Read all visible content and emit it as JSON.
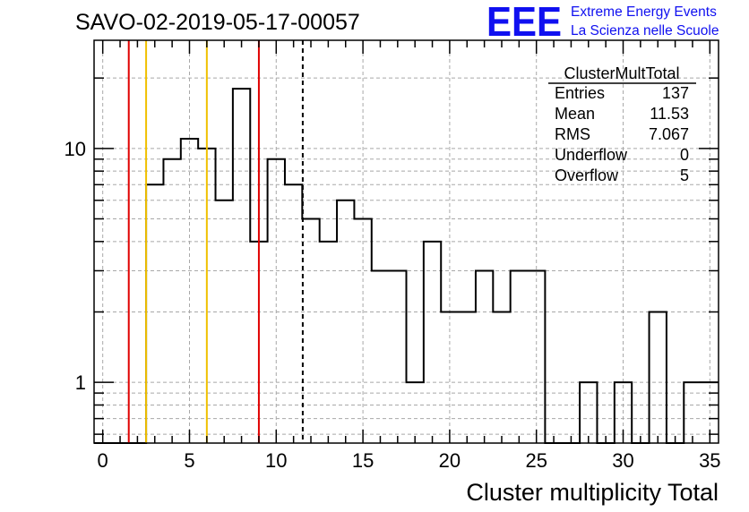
{
  "chart_data": {
    "type": "histogram",
    "title": "SAVO-02-2019-05-17-00057",
    "xlabel": "Cluster multiplicity Total",
    "ylabel": "",
    "xlim": [
      -0.5,
      35.5
    ],
    "ylim": [
      0.55,
      29
    ],
    "y_scale": "log",
    "grid": true,
    "x_ticks": [
      0,
      5,
      10,
      15,
      20,
      25,
      30,
      35
    ],
    "y_tick_labels": [
      {
        "value": 1,
        "label": "1"
      },
      {
        "value": 10,
        "label": "10"
      }
    ],
    "bins": [
      {
        "x": 0,
        "count": 0
      },
      {
        "x": 1,
        "count": 0
      },
      {
        "x": 2,
        "count": 0
      },
      {
        "x": 3,
        "count": 7
      },
      {
        "x": 4,
        "count": 9
      },
      {
        "x": 5,
        "count": 11
      },
      {
        "x": 6,
        "count": 10
      },
      {
        "x": 7,
        "count": 6
      },
      {
        "x": 8,
        "count": 18
      },
      {
        "x": 9,
        "count": 4
      },
      {
        "x": 10,
        "count": 9
      },
      {
        "x": 11,
        "count": 7
      },
      {
        "x": 12,
        "count": 5
      },
      {
        "x": 13,
        "count": 4
      },
      {
        "x": 14,
        "count": 6
      },
      {
        "x": 15,
        "count": 5
      },
      {
        "x": 16,
        "count": 3
      },
      {
        "x": 17,
        "count": 3
      },
      {
        "x": 18,
        "count": 1
      },
      {
        "x": 19,
        "count": 4
      },
      {
        "x": 20,
        "count": 2
      },
      {
        "x": 21,
        "count": 2
      },
      {
        "x": 22,
        "count": 3
      },
      {
        "x": 23,
        "count": 2
      },
      {
        "x": 24,
        "count": 3
      },
      {
        "x": 25,
        "count": 3
      },
      {
        "x": 26,
        "count": 0
      },
      {
        "x": 27,
        "count": 0
      },
      {
        "x": 28,
        "count": 1
      },
      {
        "x": 29,
        "count": 0
      },
      {
        "x": 30,
        "count": 1
      },
      {
        "x": 31,
        "count": 0
      },
      {
        "x": 32,
        "count": 2
      },
      {
        "x": 33,
        "count": 0
      },
      {
        "x": 34,
        "count": 1
      },
      {
        "x": 35,
        "count": 1
      }
    ],
    "vertical_lines": [
      {
        "x": 1.5,
        "color": "#e00000",
        "style": "solid"
      },
      {
        "x": 2.5,
        "color": "#f0c000",
        "style": "solid"
      },
      {
        "x": 6.0,
        "color": "#f0c000",
        "style": "solid"
      },
      {
        "x": 9.0,
        "color": "#e00000",
        "style": "solid"
      },
      {
        "x": 11.53,
        "color": "#000000",
        "style": "dashed"
      }
    ],
    "stats_box": {
      "name": "ClusterMultTotal",
      "rows": [
        {
          "label": "Entries",
          "value": "137"
        },
        {
          "label": "Mean",
          "value": "11.53"
        },
        {
          "label": "RMS",
          "value": "7.067"
        },
        {
          "label": "Underflow",
          "value": "0"
        },
        {
          "label": "Overflow",
          "value": "5"
        }
      ]
    }
  },
  "logo": {
    "mark": "EEE",
    "line1": "Extreme Energy Events",
    "line2": "La Scienza nelle Scuole",
    "color": "#1010f0"
  }
}
